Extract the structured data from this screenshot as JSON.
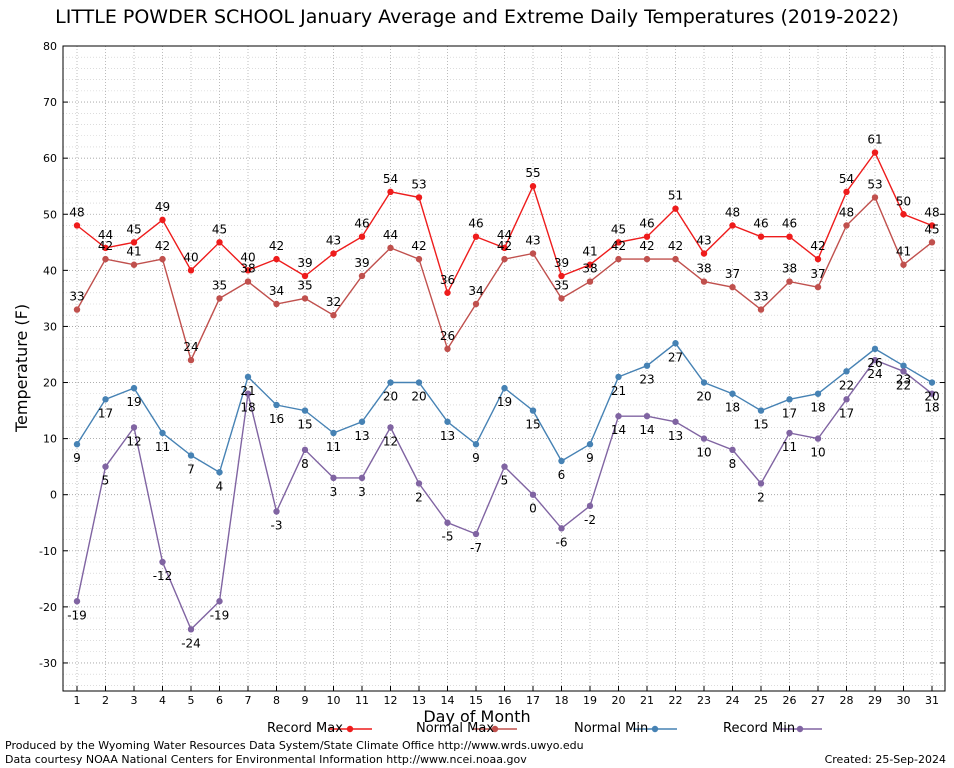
{
  "chart_data": {
    "type": "line",
    "title": "LITTLE POWDER SCHOOL January Average and Extreme Daily Temperatures (2019-2022)",
    "xlabel": "Day of Month",
    "ylabel": "Temperature (F)",
    "x": [
      1,
      2,
      3,
      4,
      5,
      6,
      7,
      8,
      9,
      10,
      11,
      12,
      13,
      14,
      15,
      16,
      17,
      18,
      19,
      20,
      21,
      22,
      23,
      24,
      25,
      26,
      27,
      28,
      29,
      30,
      31
    ],
    "ylim": [
      -35,
      80
    ],
    "yticks": [
      -30,
      -20,
      -10,
      0,
      10,
      20,
      30,
      40,
      50,
      60,
      70,
      80
    ],
    "grid": true,
    "legend_position": "bottom",
    "series": [
      {
        "name": "Record Max",
        "color": "#ee1c1c",
        "values": [
          48,
          44,
          45,
          49,
          40,
          45,
          40,
          42,
          39,
          43,
          46,
          54,
          53,
          36,
          46,
          44,
          55,
          39,
          41,
          45,
          46,
          51,
          43,
          48,
          46,
          46,
          42,
          54,
          61,
          50,
          48
        ]
      },
      {
        "name": "Normal Max",
        "color": "#c0504d",
        "values": [
          33,
          42,
          41,
          42,
          24,
          35,
          38,
          34,
          35,
          32,
          39,
          44,
          42,
          26,
          34,
          42,
          43,
          35,
          38,
          42,
          42,
          42,
          38,
          37,
          33,
          38,
          37,
          48,
          53,
          41,
          45
        ]
      },
      {
        "name": "Normal Min",
        "color": "#4682b4",
        "values": [
          9,
          17,
          19,
          11,
          7,
          4,
          21,
          16,
          15,
          11,
          13,
          20,
          20,
          13,
          9,
          19,
          15,
          6,
          9,
          21,
          23,
          27,
          20,
          18,
          15,
          17,
          18,
          22,
          26,
          23,
          20
        ]
      },
      {
        "name": "Record Min",
        "color": "#8064a2",
        "values": [
          -19,
          5,
          12,
          -12,
          -24,
          -19,
          18,
          -3,
          8,
          3,
          3,
          12,
          2,
          -5,
          -7,
          5,
          0,
          -6,
          -2,
          14,
          14,
          13,
          10,
          8,
          2,
          11,
          10,
          17,
          24,
          22,
          18
        ]
      }
    ]
  },
  "footer": {
    "produced_by": "Produced by the Wyoming Water Resources Data System/State Climate Office http://www.wrds.uwyo.edu",
    "data_courtesy": "Data courtesy NOAA National Centers for Environmental Information http://www.ncei.noaa.gov",
    "created": "Created:  25-Sep-2024"
  }
}
